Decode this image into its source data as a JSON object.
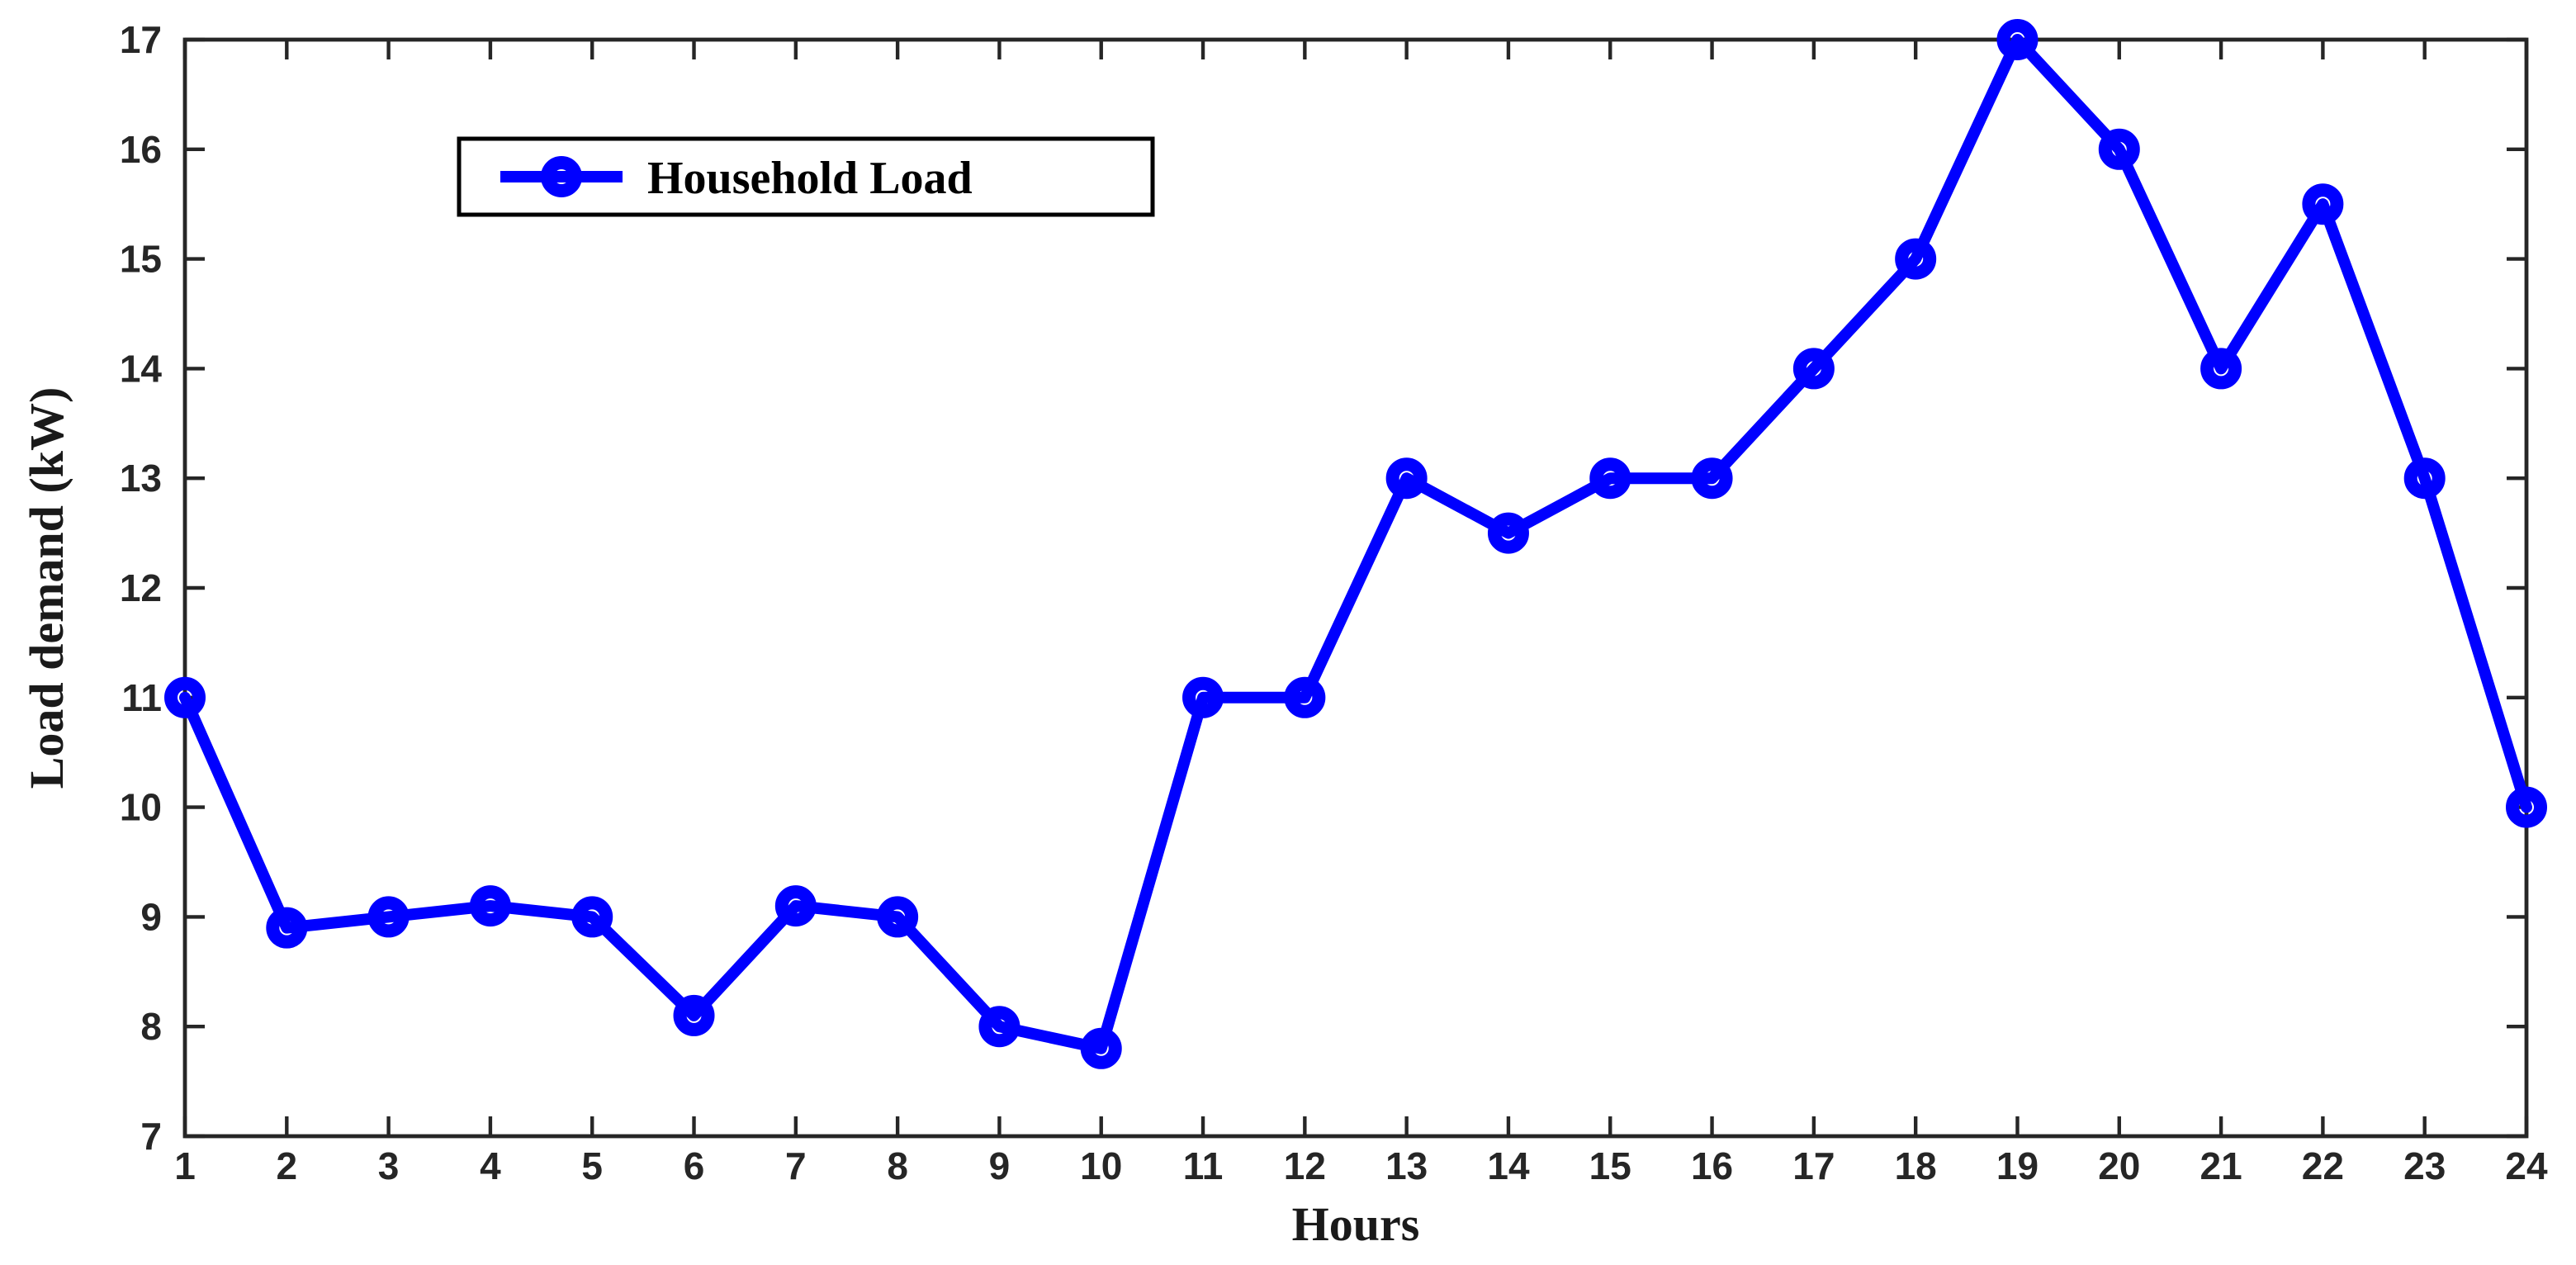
{
  "chart_data": {
    "type": "line",
    "title": "",
    "xlabel": "Hours",
    "ylabel": "Load demand (kW)",
    "x": [
      1,
      2,
      3,
      4,
      5,
      6,
      7,
      8,
      9,
      10,
      11,
      12,
      13,
      14,
      15,
      16,
      17,
      18,
      19,
      20,
      21,
      22,
      23,
      24
    ],
    "series": [
      {
        "name": "Household Load",
        "values": [
          11,
          8.9,
          9,
          9.1,
          9,
          8.1,
          9.1,
          9,
          8,
          7.8,
          11,
          11,
          13,
          12.5,
          13,
          13,
          14,
          15,
          17,
          16,
          14,
          15.5,
          13,
          10
        ]
      }
    ],
    "xlim": [
      1,
      24
    ],
    "ylim": [
      7,
      17
    ],
    "x_ticks": [
      1,
      2,
      3,
      4,
      5,
      6,
      7,
      8,
      9,
      10,
      11,
      12,
      13,
      14,
      15,
      16,
      17,
      18,
      19,
      20,
      21,
      22,
      23,
      24
    ],
    "y_ticks": [
      7,
      8,
      9,
      10,
      11,
      12,
      13,
      14,
      15,
      16,
      17
    ],
    "grid": false,
    "marker": "open-circle",
    "legend_position": "upper-left-inside",
    "colors": {
      "line": "#0000FF",
      "axis": "#262626",
      "background": "#FFFFFF",
      "legend_border": "#000000"
    }
  }
}
